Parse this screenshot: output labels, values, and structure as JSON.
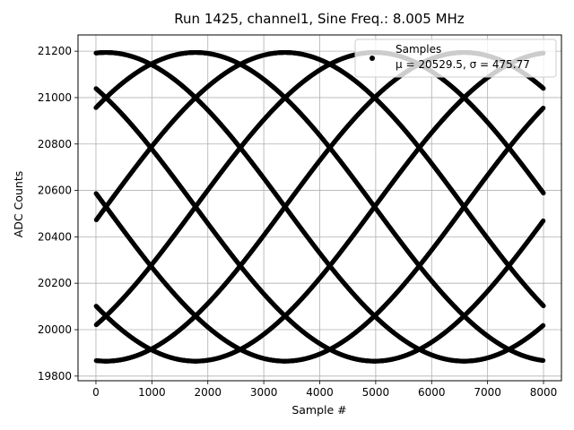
{
  "chart_data": {
    "type": "scatter",
    "title": "Run 1425, channel1, Sine Freq.: 8.005 MHz",
    "xlabel": "Sample #",
    "ylabel": "ADC Counts",
    "xlim": [
      -320,
      8320
    ],
    "ylim": [
      19780,
      21270
    ],
    "xticks": [
      "0",
      "1000",
      "2000",
      "3000",
      "4000",
      "5000",
      "6000",
      "7000",
      "8000"
    ],
    "yticks": [
      "19800",
      "20000",
      "20200",
      "20400",
      "20600",
      "20800",
      "21000",
      "21200"
    ],
    "grid": true,
    "legend": {
      "placement": "top-right",
      "marker_color": "#000000"
    },
    "series": [
      {
        "name": "Samples",
        "stats_label": "μ = 20529.5, σ = 475.77",
        "color": "#000000",
        "n_points": 8000,
        "signal": {
          "mean": 20529.5,
          "amplitude": 665,
          "phase_offset": 0.55,
          "trace_phase_deg": [
            0,
            45,
            90,
            135,
            180,
            225,
            270,
            315
          ],
          "envelope_period_samples": 1600,
          "envelope_peak_samples": [
            300,
            1900,
            3500,
            5100,
            6700
          ]
        }
      }
    ]
  }
}
